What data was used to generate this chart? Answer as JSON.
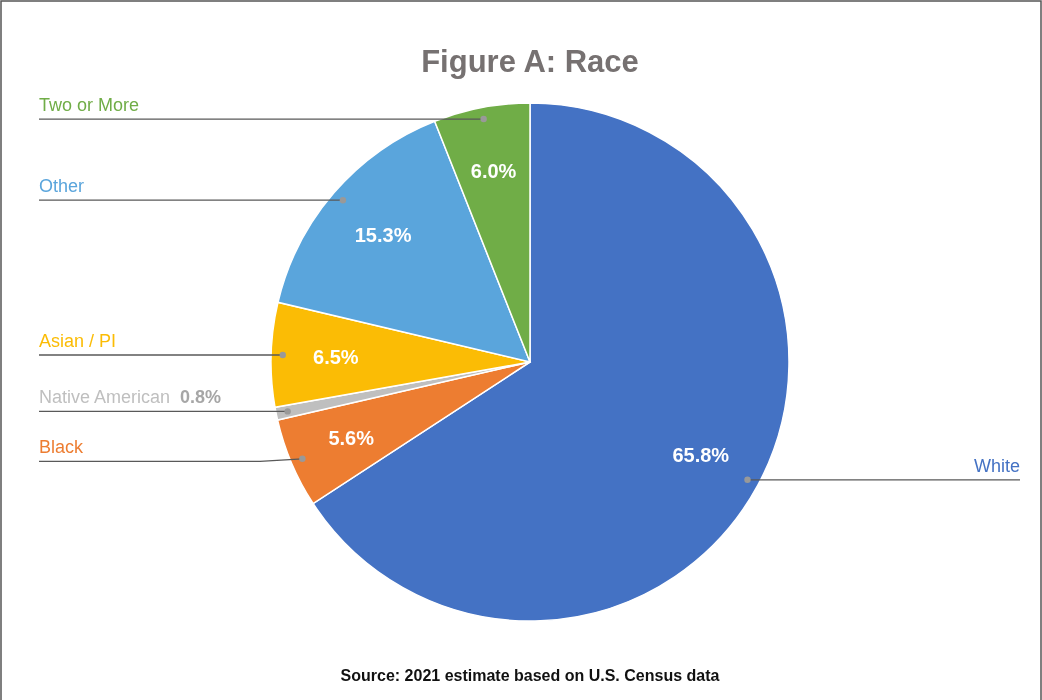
{
  "chart_data": {
    "type": "pie",
    "title": "Figure A: Race",
    "categories": [
      "White",
      "Black",
      "Native American",
      "Asian / PI",
      "Other",
      "Two or More"
    ],
    "values": [
      65.8,
      5.6,
      0.8,
      6.5,
      15.3,
      6.0
    ],
    "colors": [
      "#4472c4",
      "#ed7d31",
      "#bfbfbf",
      "#fbbc05",
      "#5aa5dc",
      "#70ad47"
    ],
    "value_labels": [
      "65.8%",
      "5.6%",
      "0.8%",
      "6.5%",
      "15.3%",
      "6.0%"
    ],
    "annotations": [
      "Source: 2021 estimate based on U.S. Census data"
    ]
  }
}
